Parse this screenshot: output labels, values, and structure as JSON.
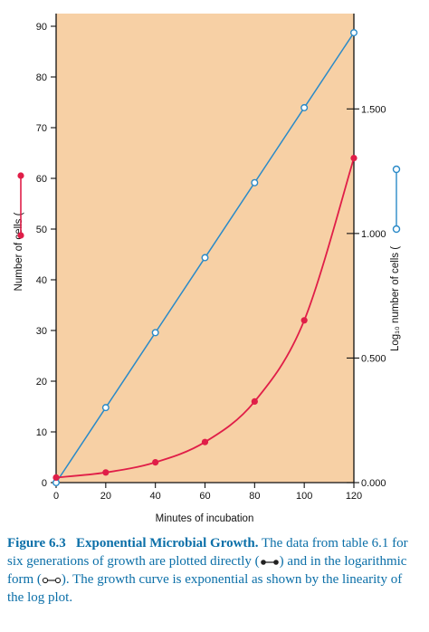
{
  "colors": {
    "plot_bg": "#f7d0a5",
    "direct_series": "#e01e48",
    "log_series": "#2a8ac8",
    "caption_text": "#0b6fa8"
  },
  "chart_data": {
    "type": "line",
    "x": [
      0,
      20,
      40,
      60,
      80,
      100,
      120
    ],
    "xlabel": "Minutes of incubation",
    "xlim": [
      0,
      120
    ],
    "x_ticks": [
      "0",
      "20",
      "40",
      "60",
      "80",
      "100",
      "120"
    ],
    "ylabel_left": "Number of cells (",
    "ylim_left": [
      0,
      90
    ],
    "y_ticks_left": [
      "0",
      "10",
      "20",
      "30",
      "40",
      "50",
      "60",
      "70",
      "80",
      "90"
    ],
    "ylabel_right": "Log₁₀ number of cells (",
    "ylim_right": [
      0,
      1.85
    ],
    "y_ticks_right": [
      "0.000",
      "0.500",
      "1.000",
      "1.500"
    ],
    "grid": false,
    "legend": "none",
    "series": [
      {
        "axis": "left",
        "values": [
          1,
          2,
          4,
          8,
          16,
          32,
          64
        ],
        "marker": "filled"
      },
      {
        "axis": "right",
        "values": [
          0.0,
          0.301,
          0.602,
          0.903,
          1.204,
          1.505,
          1.806
        ],
        "marker": "open"
      }
    ]
  },
  "caption": {
    "figure_label": "Figure 6.3",
    "heading": "Exponential Microbial Growth.",
    "text_part1": "The data from table 6.1 for six generations of growth are plotted directly (",
    "text_part2": ") and in the logarithmic form (",
    "text_part3": "). The growth curve is exponential as shown by the linearity of the log plot."
  }
}
